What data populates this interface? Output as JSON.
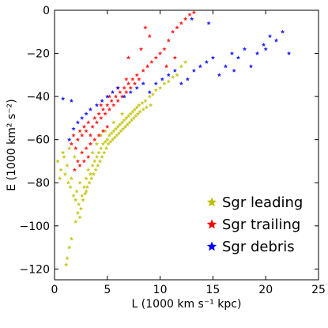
{
  "chart_data": {
    "type": "scatter",
    "xlabel": "L (1000 km s⁻¹ kpc)",
    "ylabel": "E (1000 km² s⁻²)",
    "xlim": [
      0,
      25
    ],
    "ylim": [
      -125,
      0
    ],
    "xticks": [
      0,
      5,
      10,
      15,
      20,
      25
    ],
    "yticks": [
      0,
      -20,
      -40,
      -60,
      -80,
      -100,
      -120
    ],
    "tick_labels": {
      "x": [
        "0",
        "5",
        "10",
        "15",
        "20",
        "25"
      ],
      "y": [
        "0",
        "−20",
        "−40",
        "−60",
        "−80",
        "−100",
        "−120"
      ]
    },
    "grid": false,
    "legend_position": "lower-right",
    "series": [
      {
        "name": "Sgr leading",
        "color": "#bfbf00",
        "marker": "star",
        "points": [
          [
            0.3,
            -70
          ],
          [
            0.6,
            -74
          ],
          [
            0.8,
            -66
          ],
          [
            1.0,
            -76
          ],
          [
            1.2,
            -72
          ],
          [
            1.3,
            -80
          ],
          [
            1.5,
            -82
          ],
          [
            1.6,
            -78
          ],
          [
            1.8,
            -86
          ],
          [
            2.0,
            -88
          ],
          [
            2.1,
            -84
          ],
          [
            2.3,
            -90
          ],
          [
            2.4,
            -80
          ],
          [
            2.6,
            -86
          ],
          [
            2.2,
            -94
          ],
          [
            2.0,
            -98
          ],
          [
            1.6,
            -106
          ],
          [
            1.4,
            -110
          ],
          [
            1.2,
            -115
          ],
          [
            1.1,
            -118
          ],
          [
            2.8,
            -82
          ],
          [
            3.0,
            -78
          ],
          [
            3.2,
            -74
          ],
          [
            3.4,
            -76
          ],
          [
            3.6,
            -72
          ],
          [
            3.8,
            -70
          ],
          [
            4.0,
            -68
          ],
          [
            4.2,
            -66
          ],
          [
            4.4,
            -64
          ],
          [
            4.6,
            -62
          ],
          [
            4.8,
            -61
          ],
          [
            5.0,
            -60
          ],
          [
            5.2,
            -58
          ],
          [
            5.4,
            -57
          ],
          [
            5.6,
            -56
          ],
          [
            5.8,
            -55
          ],
          [
            6.0,
            -54
          ],
          [
            6.2,
            -53
          ],
          [
            6.4,
            -52
          ],
          [
            6.6,
            -51
          ],
          [
            6.8,
            -50
          ],
          [
            7.0,
            -49
          ],
          [
            7.2,
            -48
          ],
          [
            7.4,
            -47
          ],
          [
            7.6,
            -46
          ],
          [
            7.8,
            -45
          ],
          [
            8.0,
            -44
          ],
          [
            8.3,
            -43
          ],
          [
            8.6,
            -42
          ],
          [
            9.0,
            -40
          ],
          [
            9.3,
            -39
          ],
          [
            9.6,
            -37
          ],
          [
            10.0,
            -36
          ],
          [
            10.4,
            -34
          ],
          [
            10.8,
            -33
          ],
          [
            11.2,
            -31
          ],
          [
            11.6,
            -30
          ],
          [
            12.0,
            -26
          ],
          [
            12.4,
            -24
          ],
          [
            3.1,
            -82
          ],
          [
            3.3,
            -80
          ],
          [
            3.5,
            -78
          ],
          [
            3.7,
            -76
          ],
          [
            3.9,
            -74
          ],
          [
            4.1,
            -72
          ],
          [
            4.3,
            -70
          ],
          [
            4.5,
            -68
          ],
          [
            4.7,
            -66
          ],
          [
            4.9,
            -64
          ],
          [
            5.1,
            -62
          ],
          [
            5.3,
            -61
          ],
          [
            5.5,
            -60
          ],
          [
            5.7,
            -59
          ],
          [
            5.9,
            -58
          ],
          [
            6.1,
            -57
          ],
          [
            6.3,
            -56
          ],
          [
            6.5,
            -55
          ],
          [
            6.7,
            -54
          ],
          [
            6.9,
            -53
          ],
          [
            7.1,
            -52
          ],
          [
            7.3,
            -51
          ],
          [
            7.5,
            -50
          ],
          [
            7.7,
            -49
          ],
          [
            7.9,
            -48
          ],
          [
            8.1,
            -47
          ],
          [
            8.4,
            -46
          ],
          [
            8.7,
            -45
          ],
          [
            9.1,
            -44
          ],
          [
            2.5,
            -92
          ],
          [
            2.7,
            -88
          ],
          [
            2.9,
            -85
          ],
          [
            3.0,
            -84
          ],
          [
            2.4,
            -96
          ],
          [
            0.9,
            -68
          ],
          [
            1.4,
            -64
          ],
          [
            1.9,
            -68
          ],
          [
            0.5,
            -78
          ],
          [
            3.6,
            -66
          ],
          [
            4.0,
            -62
          ],
          [
            4.4,
            -58
          ],
          [
            4.8,
            -56
          ],
          [
            5.6,
            -52
          ],
          [
            6.4,
            -48
          ]
        ]
      },
      {
        "name": "Sgr trailing",
        "color": "#ff0000",
        "marker": "star",
        "points": [
          [
            1.6,
            -62
          ],
          [
            1.8,
            -58
          ],
          [
            2.0,
            -64
          ],
          [
            2.2,
            -60
          ],
          [
            2.4,
            -56
          ],
          [
            2.6,
            -58
          ],
          [
            2.8,
            -54
          ],
          [
            3.0,
            -56
          ],
          [
            3.2,
            -52
          ],
          [
            3.4,
            -58
          ],
          [
            3.6,
            -54
          ],
          [
            3.8,
            -50
          ],
          [
            4.0,
            -52
          ],
          [
            4.2,
            -48
          ],
          [
            4.4,
            -50
          ],
          [
            4.6,
            -46
          ],
          [
            4.8,
            -48
          ],
          [
            5.0,
            -44
          ],
          [
            5.2,
            -46
          ],
          [
            5.4,
            -42
          ],
          [
            5.6,
            -44
          ],
          [
            5.8,
            -40
          ],
          [
            6.0,
            -42
          ],
          [
            6.2,
            -38
          ],
          [
            6.4,
            -40
          ],
          [
            6.6,
            -36
          ],
          [
            6.8,
            -38
          ],
          [
            7.0,
            -34
          ],
          [
            7.2,
            -36
          ],
          [
            7.4,
            -32
          ],
          [
            7.6,
            -34
          ],
          [
            7.8,
            -30
          ],
          [
            8.0,
            -32
          ],
          [
            8.4,
            -28
          ],
          [
            8.8,
            -26
          ],
          [
            9.2,
            -24
          ],
          [
            9.6,
            -22
          ],
          [
            10.0,
            -20
          ],
          [
            10.4,
            -18
          ],
          [
            10.8,
            -14
          ],
          [
            11.2,
            -10
          ],
          [
            11.6,
            -8
          ],
          [
            12.0,
            -6
          ],
          [
            12.4,
            -4
          ],
          [
            12.8,
            -2
          ],
          [
            13.2,
            -1
          ],
          [
            9.0,
            -12
          ],
          [
            8.6,
            -8
          ],
          [
            10.6,
            -26
          ],
          [
            11.4,
            -22
          ],
          [
            7.0,
            -22
          ],
          [
            8.2,
            -18
          ],
          [
            2.2,
            -70
          ],
          [
            2.6,
            -66
          ],
          [
            3.0,
            -64
          ],
          [
            3.4,
            -62
          ],
          [
            3.8,
            -60
          ],
          [
            4.2,
            -58
          ],
          [
            4.6,
            -56
          ],
          [
            5.0,
            -54
          ],
          [
            2.8,
            -70
          ],
          [
            3.2,
            -68
          ],
          [
            1.9,
            -74
          ],
          [
            2.4,
            -72
          ],
          [
            4.4,
            -44
          ],
          [
            5.2,
            -40
          ],
          [
            6.0,
            -36
          ],
          [
            6.8,
            -32
          ]
        ]
      },
      {
        "name": "Sgr debris",
        "color": "#0000ff",
        "marker": "star",
        "points": [
          [
            0.8,
            -41
          ],
          [
            1.6,
            -42
          ],
          [
            1.4,
            -60
          ],
          [
            1.8,
            -55
          ],
          [
            2.2,
            -52
          ],
          [
            2.6,
            -50
          ],
          [
            3.0,
            -48
          ],
          [
            3.4,
            -46
          ],
          [
            4.0,
            -44
          ],
          [
            4.5,
            -42
          ],
          [
            5.0,
            -40
          ],
          [
            5.5,
            -38
          ],
          [
            6.0,
            -36
          ],
          [
            6.6,
            -40
          ],
          [
            7.2,
            -38
          ],
          [
            7.8,
            -36
          ],
          [
            8.4,
            -34
          ],
          [
            9.0,
            -38
          ],
          [
            9.6,
            -34
          ],
          [
            10.2,
            -32
          ],
          [
            10.8,
            -30
          ],
          [
            11.4,
            -28
          ],
          [
            12.0,
            -34
          ],
          [
            12.6,
            -32
          ],
          [
            13.2,
            -28
          ],
          [
            13.8,
            -26
          ],
          [
            14.4,
            -24
          ],
          [
            15.0,
            -22
          ],
          [
            15.6,
            -30
          ],
          [
            16.2,
            -26
          ],
          [
            16.8,
            -20
          ],
          [
            17.4,
            -22
          ],
          [
            18.0,
            -18
          ],
          [
            18.6,
            -26
          ],
          [
            19.2,
            -20
          ],
          [
            19.8,
            -16
          ],
          [
            20.4,
            -12
          ],
          [
            21.0,
            -14
          ],
          [
            21.6,
            -10
          ],
          [
            22.2,
            -20
          ],
          [
            14.6,
            -6
          ],
          [
            13.0,
            -4
          ],
          [
            20.0,
            -18
          ],
          [
            17.0,
            -28
          ]
        ]
      }
    ]
  }
}
